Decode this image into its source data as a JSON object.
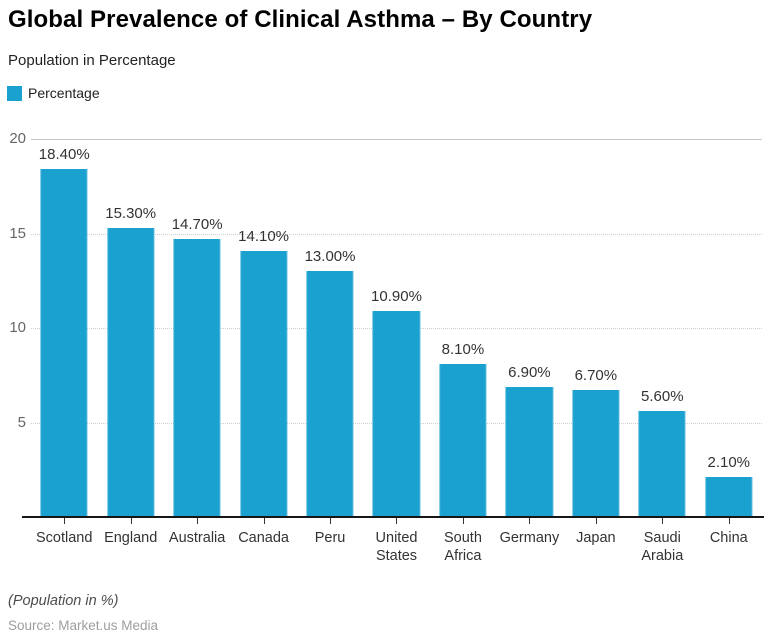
{
  "header": {
    "title": "Global Prevalence of Clinical Asthma – By Country",
    "subtitle": "Population in Percentage",
    "legend": [
      {
        "label": "Percentage",
        "color": "#1AA1D0",
        "swatch_icon": "legend-square"
      }
    ]
  },
  "chart_data": {
    "type": "bar",
    "title": "Global Prevalence of Clinical Asthma – By Country",
    "subtitle": "Population in Percentage",
    "series_name": "Percentage",
    "categories": [
      "Scotland",
      "England",
      "Australia",
      "Canada",
      "Peru",
      "United States",
      "South Africa",
      "Germany",
      "Japan",
      "Saudi Arabia",
      "China"
    ],
    "values": [
      18.4,
      15.3,
      14.7,
      14.1,
      13.0,
      10.9,
      8.1,
      6.9,
      6.7,
      5.6,
      2.1
    ],
    "value_labels": [
      "18.40%",
      "15.30%",
      "14.70%",
      "14.10%",
      "13.00%",
      "10.90%",
      "8.10%",
      "6.90%",
      "6.70%",
      "5.60%",
      "2.10%"
    ],
    "xlabel": "",
    "ylabel": "",
    "ylim": [
      0,
      20
    ],
    "yticks": [
      20,
      15,
      10,
      5
    ],
    "grid": true,
    "legend_position": "top-left",
    "bar_color": "#1AA1D0",
    "grid_top_line_color": "#c6c6c6",
    "grid_line_color": "#cfcfcf",
    "axis_line_color": "#161616"
  },
  "footer": {
    "note": "(Population in %)",
    "source": "Source: Market.us Media"
  }
}
